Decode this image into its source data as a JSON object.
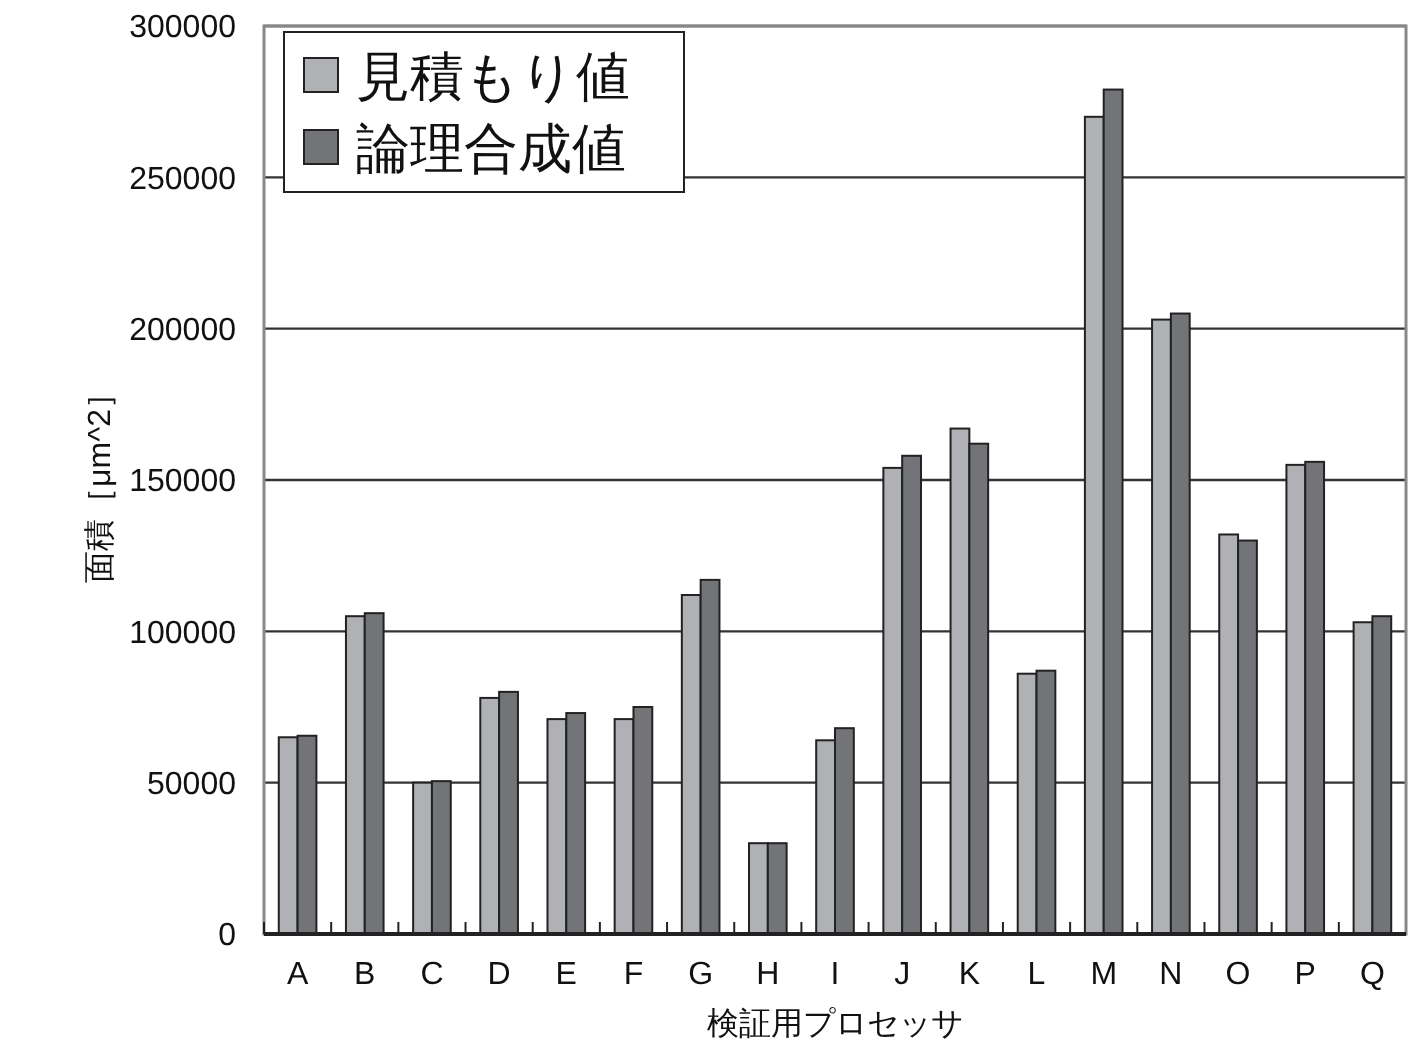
{
  "chart_data": {
    "type": "bar",
    "xlabel": "検証用プロセッサ",
    "ylabel": "面積［μm^2］",
    "categories": [
      "A",
      "B",
      "C",
      "D",
      "E",
      "F",
      "G",
      "H",
      "I",
      "J",
      "K",
      "L",
      "M",
      "N",
      "O",
      "P",
      "Q"
    ],
    "series": [
      {
        "name": "見積もり値",
        "color": "#b0b1b4",
        "values": [
          65000,
          105000,
          50000,
          78000,
          71000,
          71000,
          112000,
          30000,
          64000,
          154000,
          167000,
          86000,
          270000,
          203000,
          132000,
          155000,
          103000
        ]
      },
      {
        "name": "論理合成値",
        "color": "#737478",
        "values": [
          65500,
          106000,
          50500,
          80000,
          73000,
          75000,
          117000,
          30000,
          68000,
          158000,
          162000,
          87000,
          279000,
          205000,
          130000,
          156000,
          105000
        ]
      }
    ],
    "ylim": [
      0,
      300000
    ],
    "yticks": [
      0,
      50000,
      100000,
      150000,
      200000,
      250000,
      300000
    ],
    "grid": "y",
    "legend": "top left"
  }
}
